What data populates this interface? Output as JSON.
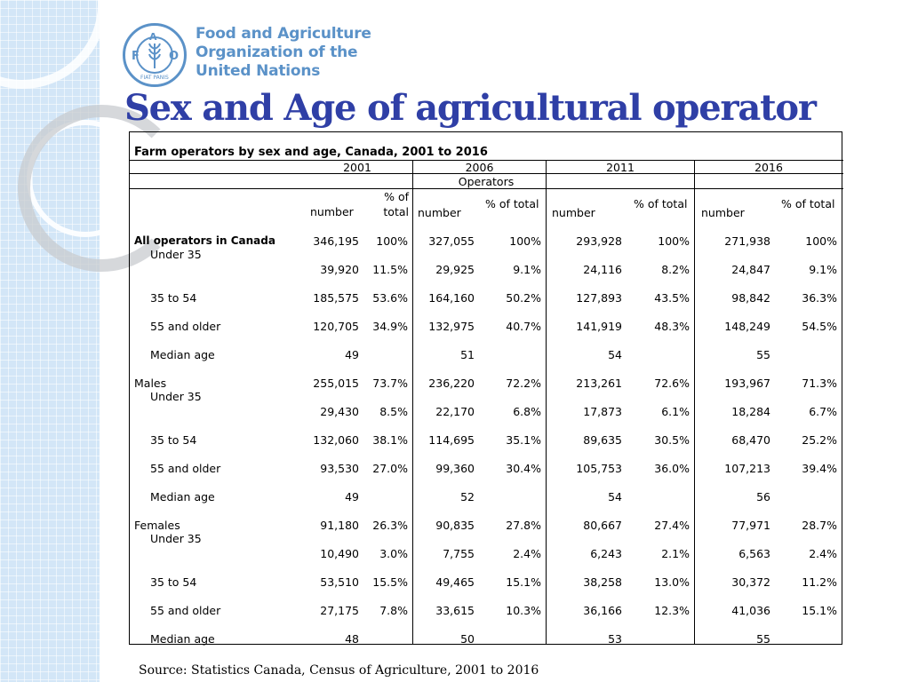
{
  "logo": {
    "letters": "F A O",
    "lines": [
      "Food and Agriculture",
      "Organization of the",
      "United Nations"
    ],
    "motto": "FIAT PANIS"
  },
  "title": "Sex and Age of agricultural operator",
  "table": {
    "caption": "Farm operators by sex and age, Canada, 2001 to 2016",
    "years": [
      "2001",
      "2006",
      "2011",
      "2016"
    ],
    "group_header": "Operators",
    "col_number": "number",
    "col_pct_2001_line1": "% of",
    "col_pct_2001_line2": "total",
    "col_pct": "% of total",
    "rows": [
      {
        "label": "All operators in Canada",
        "style": "bold",
        "v": [
          "346,195",
          "100%",
          "327,055",
          "100%",
          "293,928",
          "100%",
          "271,938",
          "100%"
        ]
      },
      {
        "label": "Under 35",
        "style": "sub-split",
        "v": [
          "39,920",
          "11.5%",
          "29,925",
          "9.1%",
          "24,116",
          "8.2%",
          "24,847",
          "9.1%"
        ]
      },
      {
        "label": "35 to 54",
        "style": "sub",
        "v": [
          "185,575",
          "53.6%",
          "164,160",
          "50.2%",
          "127,893",
          "43.5%",
          "98,842",
          "36.3%"
        ]
      },
      {
        "label": "55 and older",
        "style": "sub",
        "v": [
          "120,705",
          "34.9%",
          "132,975",
          "40.7%",
          "141,919",
          "48.3%",
          "148,249",
          "54.5%"
        ]
      },
      {
        "label": "Median age",
        "style": "sub",
        "v": [
          "49",
          "",
          "51",
          "",
          "54",
          "",
          "55",
          ""
        ]
      },
      {
        "label": "Males",
        "style": "plain",
        "v": [
          "255,015",
          "73.7%",
          "236,220",
          "72.2%",
          "213,261",
          "72.6%",
          "193,967",
          "71.3%"
        ]
      },
      {
        "label": "Under 35",
        "style": "sub-split",
        "v": [
          "29,430",
          "8.5%",
          "22,170",
          "6.8%",
          "17,873",
          "6.1%",
          "18,284",
          "6.7%"
        ]
      },
      {
        "label": "35 to 54",
        "style": "sub",
        "v": [
          "132,060",
          "38.1%",
          "114,695",
          "35.1%",
          "89,635",
          "30.5%",
          "68,470",
          "25.2%"
        ]
      },
      {
        "label": "55 and older",
        "style": "sub",
        "v": [
          "93,530",
          "27.0%",
          "99,360",
          "30.4%",
          "105,753",
          "36.0%",
          "107,213",
          "39.4%"
        ]
      },
      {
        "label": "Median age",
        "style": "sub",
        "v": [
          "49",
          "",
          "52",
          "",
          "54",
          "",
          "56",
          ""
        ]
      },
      {
        "label": "Females",
        "style": "plain",
        "v": [
          "91,180",
          "26.3%",
          "90,835",
          "27.8%",
          "80,667",
          "27.4%",
          "77,971",
          "28.7%"
        ]
      },
      {
        "label": "Under 35",
        "style": "sub-split",
        "v": [
          "10,490",
          "3.0%",
          "7,755",
          "2.4%",
          "6,243",
          "2.1%",
          "6,563",
          "2.4%"
        ]
      },
      {
        "label": "35 to 54",
        "style": "sub",
        "v": [
          "53,510",
          "15.5%",
          "49,465",
          "15.1%",
          "38,258",
          "13.0%",
          "30,372",
          "11.2%"
        ]
      },
      {
        "label": "55 and older",
        "style": "sub",
        "v": [
          "27,175",
          "7.8%",
          "33,615",
          "10.3%",
          "36,166",
          "12.3%",
          "41,036",
          "15.1%"
        ]
      },
      {
        "label": "Median age",
        "style": "sub",
        "v": [
          "48",
          "",
          "50",
          "",
          "53",
          "",
          "55",
          ""
        ]
      }
    ]
  },
  "source": "Source: Statistics Canada, Census of Agriculture, 2001 to 2016",
  "colors": {
    "title": "#2f3fa6",
    "logo": "#5b92c8",
    "stripe": "#d3e6f7"
  }
}
